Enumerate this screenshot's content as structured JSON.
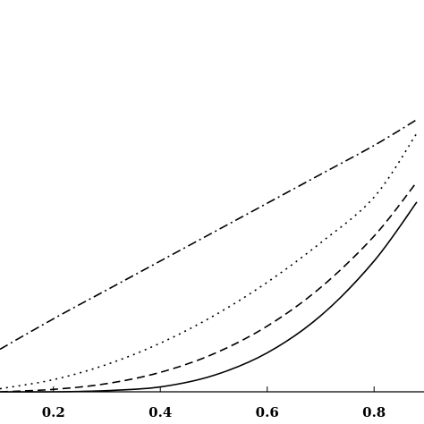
{
  "chart_data": {
    "type": "line",
    "title": "",
    "xlabel": "",
    "ylabel": "",
    "xlim": [
      0.1,
      0.88
    ],
    "ylim": [
      0,
      1
    ],
    "grid": false,
    "legend": "none",
    "x_ticks": [
      0.2,
      0.4,
      0.6,
      0.8
    ],
    "x_tick_labels": [
      "0.2",
      "0.4",
      "0.6",
      "0.8"
    ],
    "line_color": "#000000",
    "series": [
      {
        "style": "solid",
        "x": [
          0.1,
          0.2,
          0.3,
          0.4,
          0.5,
          0.6,
          0.7,
          0.8,
          0.88
        ],
        "y": [
          0.0,
          0.0,
          0.004,
          0.016,
          0.054,
          0.128,
          0.25,
          0.43,
          0.624
        ]
      },
      {
        "style": "dashed",
        "x": [
          0.1,
          0.2,
          0.3,
          0.4,
          0.5,
          0.6,
          0.7,
          0.8,
          0.88
        ],
        "y": [
          0.0,
          0.008,
          0.027,
          0.064,
          0.125,
          0.216,
          0.343,
          0.512,
          0.69
        ]
      },
      {
        "style": "dotted",
        "x": [
          0.1,
          0.2,
          0.3,
          0.4,
          0.5,
          0.6,
          0.7,
          0.8,
          0.88
        ],
        "y": [
          0.01,
          0.04,
          0.09,
          0.16,
          0.25,
          0.36,
          0.49,
          0.64,
          0.85
        ]
      },
      {
        "style": "dashdot",
        "x": [
          0.1,
          0.2,
          0.3,
          0.4,
          0.5,
          0.6,
          0.7,
          0.8,
          0.88
        ],
        "y": [
          0.14,
          0.24,
          0.335,
          0.43,
          0.525,
          0.62,
          0.715,
          0.81,
          0.895
        ]
      }
    ]
  }
}
